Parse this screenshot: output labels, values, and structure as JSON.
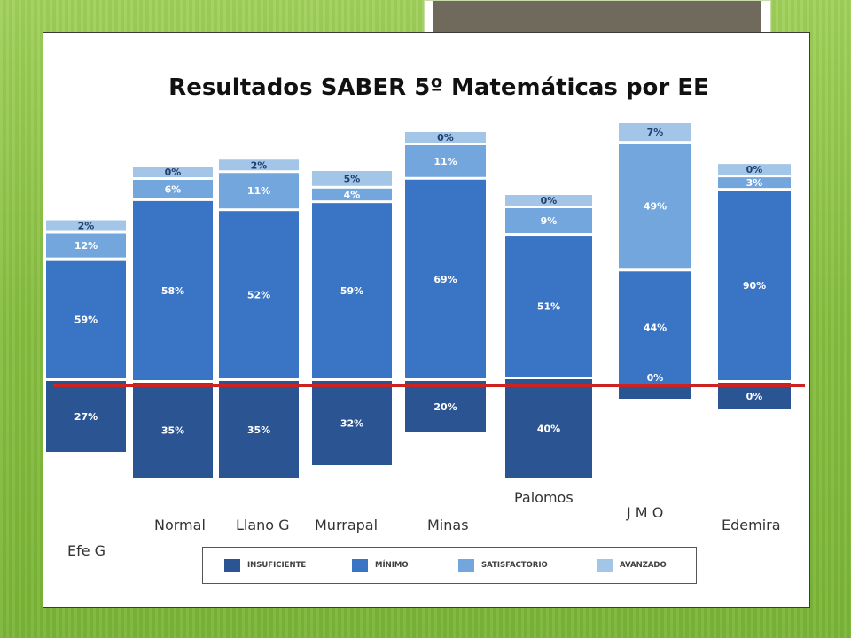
{
  "chart_data": {
    "type": "bar",
    "stacked": true,
    "title": "Resultados SABER 5º Matemáticas por EE",
    "categories": [
      "Efe G",
      "Normal",
      "Llano G",
      "Murrapal",
      "Minas",
      "Palomos",
      "J M O",
      "Edemira"
    ],
    "series": [
      {
        "name": "INSUFICIENTE",
        "color": "#2b5592",
        "values": [
          27,
          35,
          35,
          32,
          20,
          40,
          0,
          0
        ],
        "labels": [
          "27%",
          "35%",
          "35%",
          "32%",
          "20%",
          "40%",
          "",
          "0%"
        ]
      },
      {
        "name": "MÍNIMO",
        "color": "#3a74c4",
        "values": [
          59,
          58,
          52,
          59,
          69,
          51,
          44,
          90
        ],
        "labels": [
          "59%",
          "58%",
          "52%",
          "59%",
          "69%",
          "51%",
          "44%",
          "90%"
        ]
      },
      {
        "name": "SATISFACTORIO",
        "color": "#72a6dc",
        "values": [
          12,
          6,
          11,
          4,
          11,
          9,
          49,
          3
        ],
        "labels": [
          "12%",
          "6%",
          "11%",
          "4%",
          "11%",
          "9%",
          "49%",
          "3%"
        ]
      },
      {
        "name": "AVANZADO",
        "color": "#a2c5e8",
        "values": [
          2,
          0,
          2,
          5,
          0,
          0,
          7,
          0
        ],
        "labels": [
          "2%",
          "0%",
          "2%",
          "5%",
          "0%",
          "0%",
          "7%",
          "0%"
        ]
      }
    ],
    "extra_labels": [
      {
        "category": "J M O",
        "text": "0%"
      }
    ],
    "reference_line": {
      "color": "#cc2222"
    },
    "legend": [
      "INSUFICIENTE",
      "MÍNIMO",
      "SATISFACTORIO",
      "AVANZADO"
    ],
    "legend_position": "bottom"
  }
}
